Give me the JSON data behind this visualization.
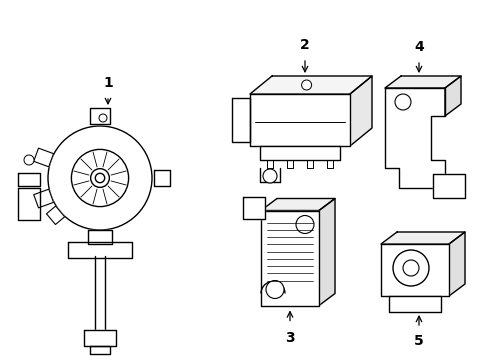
{
  "background_color": "#ffffff",
  "line_color": "#000000",
  "line_width": 1.0,
  "figsize": [
    4.9,
    3.6
  ],
  "dpi": 100
}
